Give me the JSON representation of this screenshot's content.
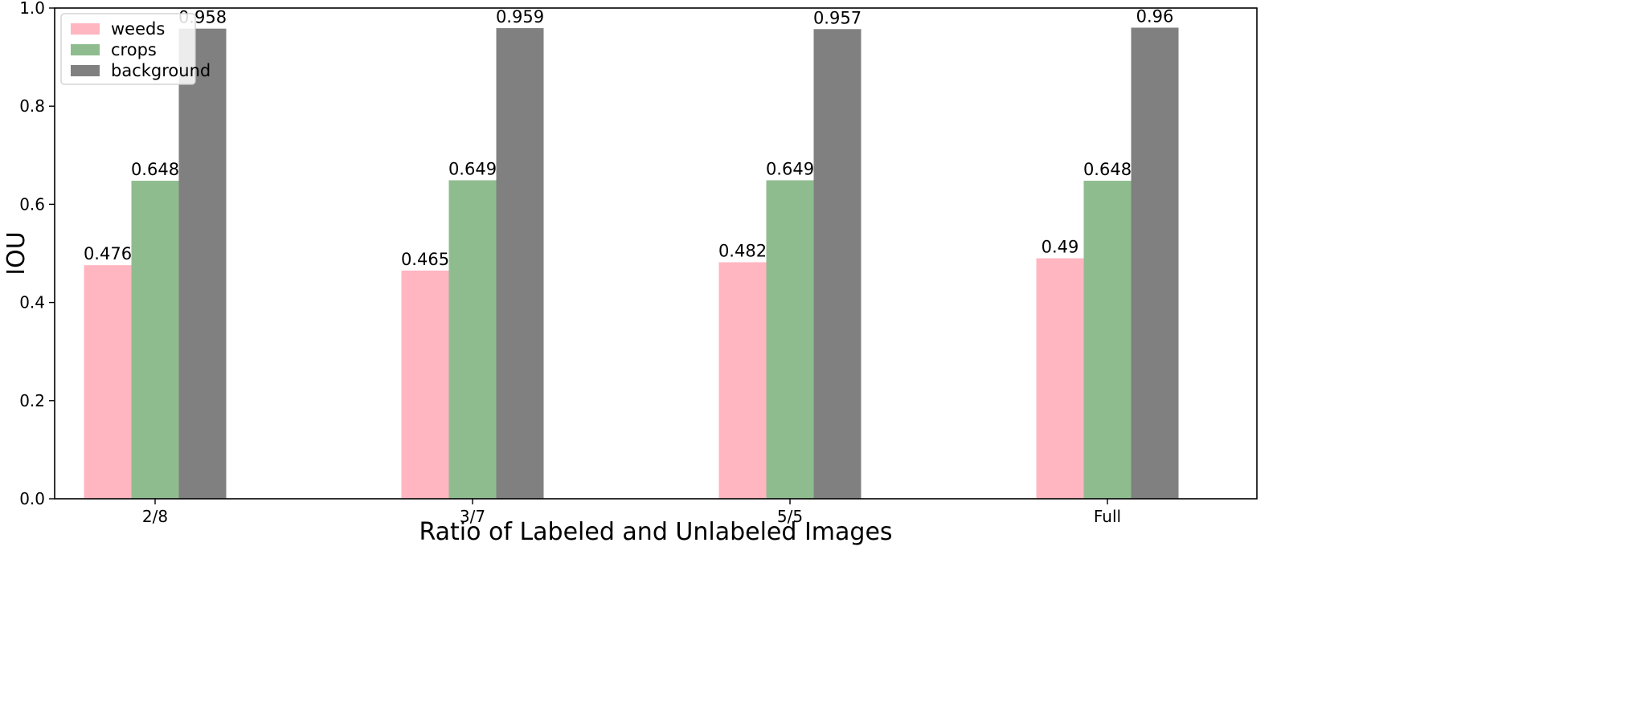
{
  "chart_data": {
    "type": "bar",
    "title": "",
    "xlabel": "Ratio of Labeled and Unlabeled Images",
    "ylabel": "IOU",
    "categories": [
      "2/8",
      "3/7",
      "5/5",
      "Full"
    ],
    "series": [
      {
        "name": "weeds",
        "values": [
          0.476,
          0.465,
          0.482,
          0.49
        ],
        "labels": [
          "0.476",
          "0.465",
          "0.482",
          "0.49"
        ],
        "color": "#ffb6c1"
      },
      {
        "name": "crops",
        "values": [
          0.648,
          0.649,
          0.649,
          0.648
        ],
        "labels": [
          "0.648",
          "0.649",
          "0.649",
          "0.648"
        ],
        "color": "#8fbc8f"
      },
      {
        "name": "background",
        "values": [
          0.958,
          0.959,
          0.957,
          0.96
        ],
        "labels": [
          "0.958",
          "0.959",
          "0.957",
          "0.96"
        ],
        "color": "#808080"
      }
    ],
    "ylim": [
      0,
      1.0
    ],
    "yticks": [
      "0.0",
      "0.2",
      "0.4",
      "0.6",
      "0.8",
      "1.0"
    ],
    "grid": false,
    "legend_position": "top-left"
  }
}
